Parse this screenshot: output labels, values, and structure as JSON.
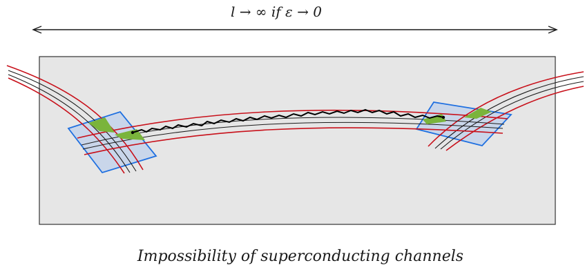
{
  "diagram": {
    "top_annotation": "l → ∞ if ε → 0",
    "caption": "Impossibility of superconducting channels"
  },
  "colors": {
    "background": "#ffffff",
    "panel_fill": "#e6e6e6",
    "panel_border": "#333333",
    "channel_red": "#c8101a",
    "channel_black": "#1a1a1a",
    "patch_fill": "#c9d6ea",
    "patch_border": "#1e6fe0",
    "green_region": "#7ab43c",
    "path": "#000000"
  }
}
